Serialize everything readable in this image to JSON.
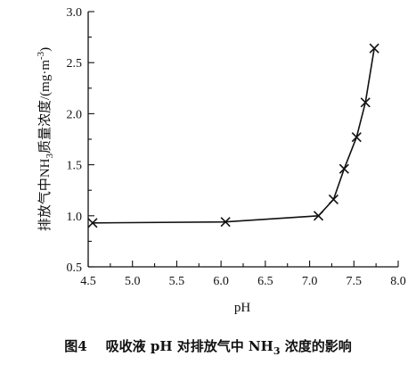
{
  "chart_data": {
    "type": "line",
    "x": [
      4.55,
      6.05,
      7.1,
      7.27,
      7.39,
      7.53,
      7.63,
      7.73
    ],
    "values": [
      0.93,
      0.94,
      1.0,
      1.16,
      1.46,
      1.77,
      2.11,
      2.64
    ],
    "marker": "x",
    "xlabel": "pH",
    "ylabel_prefix": "排放气中NH",
    "ylabel_sub": "3",
    "ylabel_suffix": "质量浓度/(mg·m",
    "ylabel_sup": "-3",
    "ylabel_end": ")",
    "xlim": [
      4.5,
      8.0
    ],
    "ylim": [
      0.5,
      3.0
    ],
    "xticks": [
      "4.5",
      "5.0",
      "5.5",
      "6.0",
      "6.5",
      "7.0",
      "7.5",
      "8.0"
    ],
    "yticks": [
      "0.5",
      "1.0",
      "1.5",
      "2.0",
      "2.5",
      "3.0"
    ],
    "grid": false,
    "line_color": "#111111"
  },
  "caption": {
    "figure_no": "图4",
    "text_before": "吸收液 pH 对排放气中 NH",
    "text_sub": "3",
    "text_after": " 浓度的影响"
  }
}
